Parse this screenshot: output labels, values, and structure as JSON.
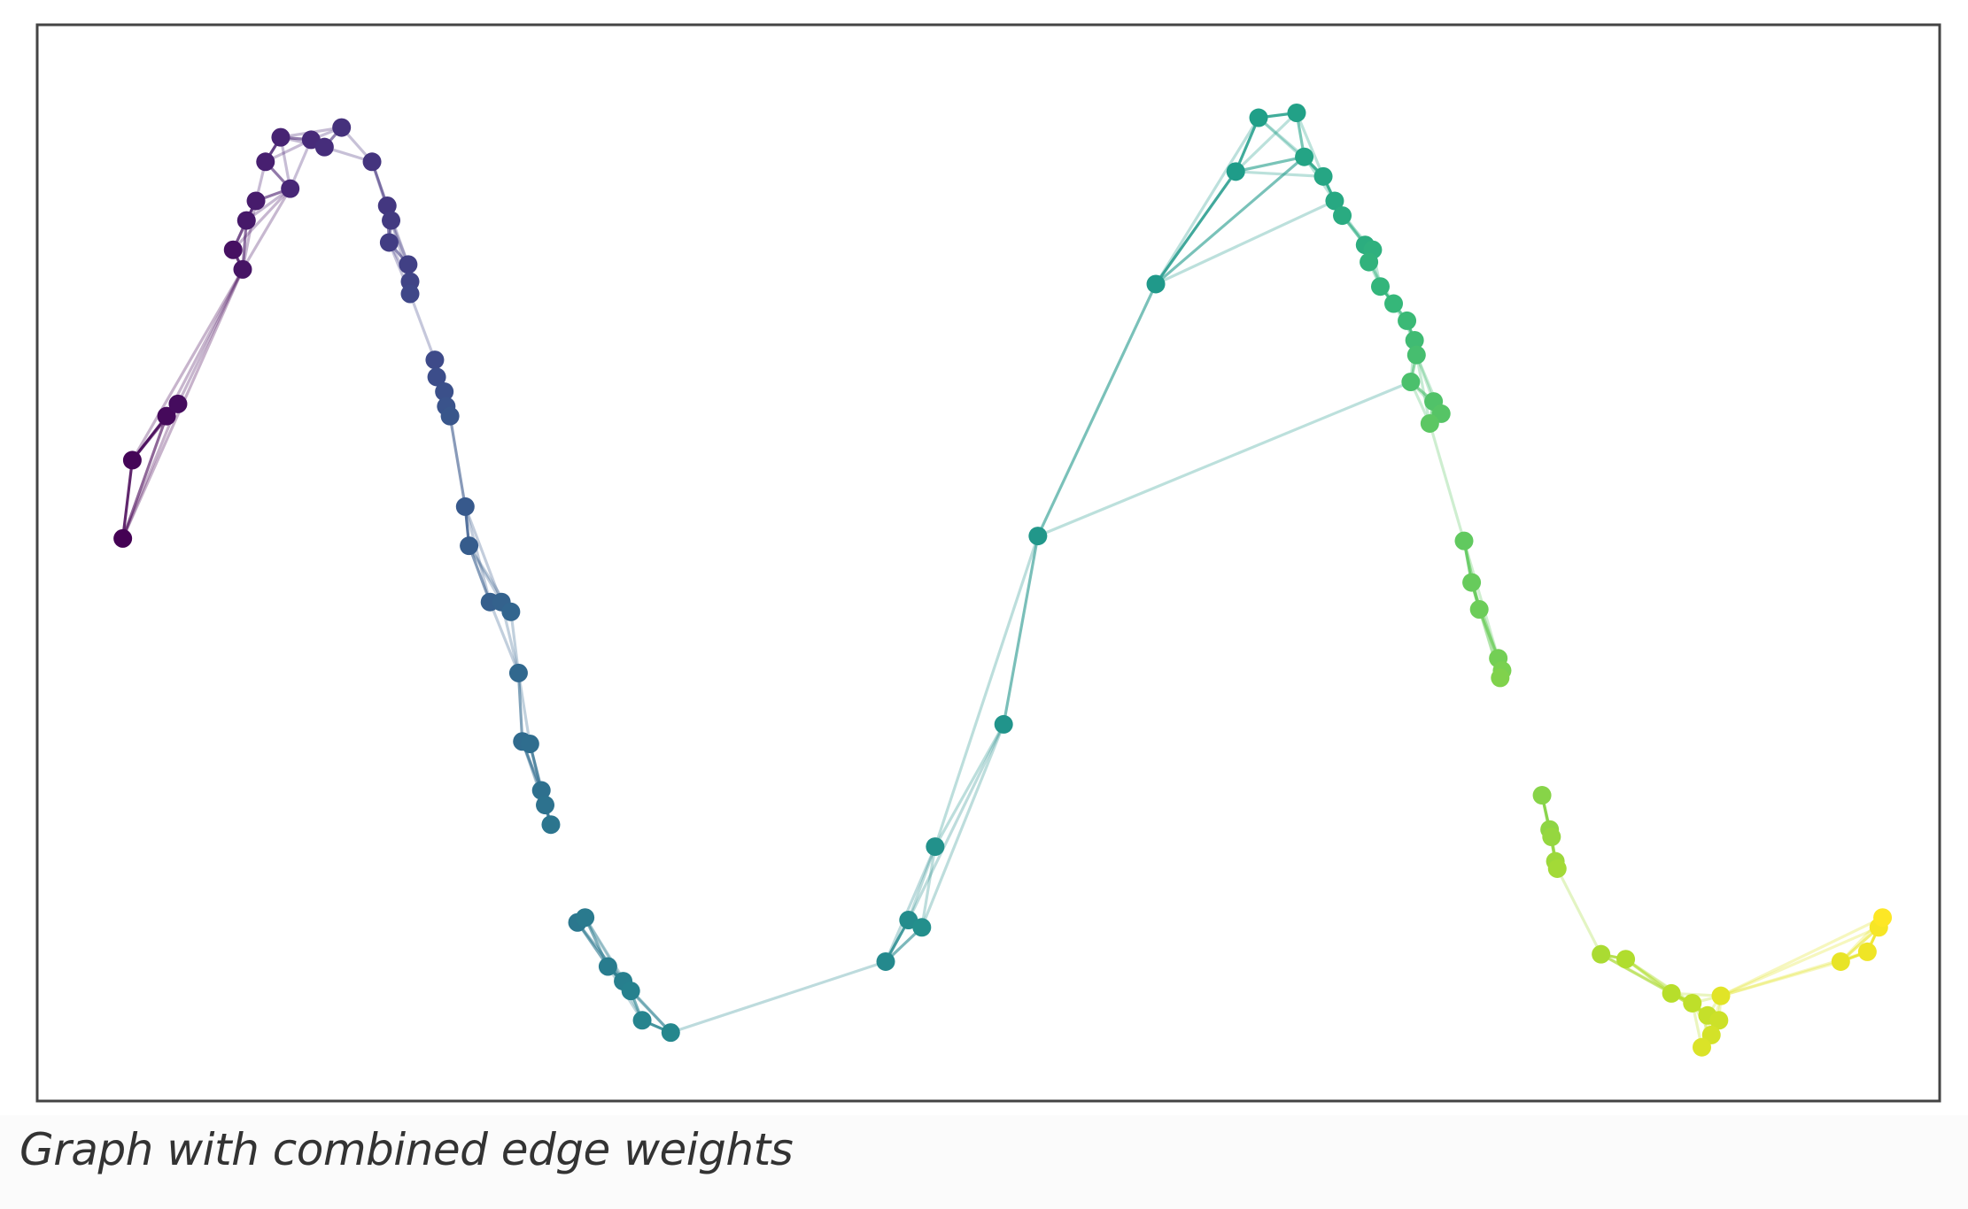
{
  "caption": "Graph with combined edge weights",
  "chart_data": {
    "type": "scatter",
    "title": "",
    "xlabel": "",
    "ylabel": "",
    "grid": false,
    "xlim": [
      0,
      10
    ],
    "ylim": [
      -1.1,
      1.1
    ],
    "colormap": "viridis",
    "colormap_stops": [
      "#440154",
      "#482878",
      "#3e4989",
      "#31688e",
      "#26828e",
      "#1f9e89",
      "#35b779",
      "#6ece58",
      "#b5de2b",
      "#fde725"
    ],
    "frame_color": "#444444",
    "points": [
      [
        0.45,
        0.05
      ],
      [
        0.5,
        0.21
      ],
      [
        0.68,
        0.3
      ],
      [
        0.74,
        0.325
      ],
      [
        1.03,
        0.64
      ],
      [
        1.08,
        0.6
      ],
      [
        1.1,
        0.7
      ],
      [
        1.15,
        0.74
      ],
      [
        1.2,
        0.82
      ],
      [
        1.28,
        0.87
      ],
      [
        1.33,
        0.765
      ],
      [
        1.44,
        0.865
      ],
      [
        1.51,
        0.85
      ],
      [
        1.6,
        0.89
      ],
      [
        1.76,
        0.82
      ],
      [
        1.84,
        0.73
      ],
      [
        1.86,
        0.7
      ],
      [
        1.85,
        0.655
      ],
      [
        1.95,
        0.61
      ],
      [
        1.96,
        0.575
      ],
      [
        1.96,
        0.55
      ],
      [
        2.09,
        0.415
      ],
      [
        2.1,
        0.38
      ],
      [
        2.14,
        0.35
      ],
      [
        2.15,
        0.32
      ],
      [
        2.17,
        0.3
      ],
      [
        2.25,
        0.115
      ],
      [
        2.27,
        0.035
      ],
      [
        2.38,
        -0.08
      ],
      [
        2.44,
        -0.08
      ],
      [
        2.49,
        -0.1
      ],
      [
        2.53,
        -0.225
      ],
      [
        2.55,
        -0.365
      ],
      [
        2.59,
        -0.37
      ],
      [
        2.65,
        -0.465
      ],
      [
        2.67,
        -0.495
      ],
      [
        2.7,
        -0.535
      ],
      [
        2.84,
        -0.735
      ],
      [
        2.88,
        -0.725
      ],
      [
        3.0,
        -0.825
      ],
      [
        3.08,
        -0.855
      ],
      [
        3.12,
        -0.875
      ],
      [
        3.18,
        -0.935
      ],
      [
        3.33,
        -0.96
      ],
      [
        4.46,
        -0.815
      ],
      [
        4.58,
        -0.73
      ],
      [
        4.65,
        -0.745
      ],
      [
        4.72,
        -0.58
      ],
      [
        5.08,
        -0.33
      ],
      [
        5.26,
        0.055
      ],
      [
        5.88,
        0.57
      ],
      [
        6.3,
        0.8
      ],
      [
        6.42,
        0.91
      ],
      [
        6.62,
        0.92
      ],
      [
        6.66,
        0.83
      ],
      [
        6.76,
        0.79
      ],
      [
        6.82,
        0.74
      ],
      [
        6.86,
        0.71
      ],
      [
        6.98,
        0.65
      ],
      [
        7.02,
        0.64
      ],
      [
        7.0,
        0.615
      ],
      [
        7.06,
        0.565
      ],
      [
        7.13,
        0.53
      ],
      [
        7.2,
        0.495
      ],
      [
        7.24,
        0.455
      ],
      [
        7.25,
        0.425
      ],
      [
        7.22,
        0.37
      ],
      [
        7.34,
        0.33
      ],
      [
        7.38,
        0.305
      ],
      [
        7.32,
        0.285
      ],
      [
        7.5,
        0.045
      ],
      [
        7.54,
        -0.04
      ],
      [
        7.58,
        -0.095
      ],
      [
        7.68,
        -0.195
      ],
      [
        7.7,
        -0.22
      ],
      [
        7.69,
        -0.235
      ],
      [
        7.91,
        -0.475
      ],
      [
        7.95,
        -0.545
      ],
      [
        7.96,
        -0.56
      ],
      [
        7.98,
        -0.61
      ],
      [
        7.99,
        -0.625
      ],
      [
        8.22,
        -0.8
      ],
      [
        8.35,
        -0.81
      ],
      [
        8.59,
        -0.88
      ],
      [
        8.7,
        -0.9
      ],
      [
        8.78,
        -0.925
      ],
      [
        8.84,
        -0.935
      ],
      [
        8.8,
        -0.965
      ],
      [
        8.75,
        -0.99
      ],
      [
        8.85,
        -0.885
      ],
      [
        9.48,
        -0.815
      ],
      [
        9.62,
        -0.795
      ],
      [
        9.68,
        -0.745
      ],
      [
        9.7,
        -0.725
      ]
    ]
  }
}
